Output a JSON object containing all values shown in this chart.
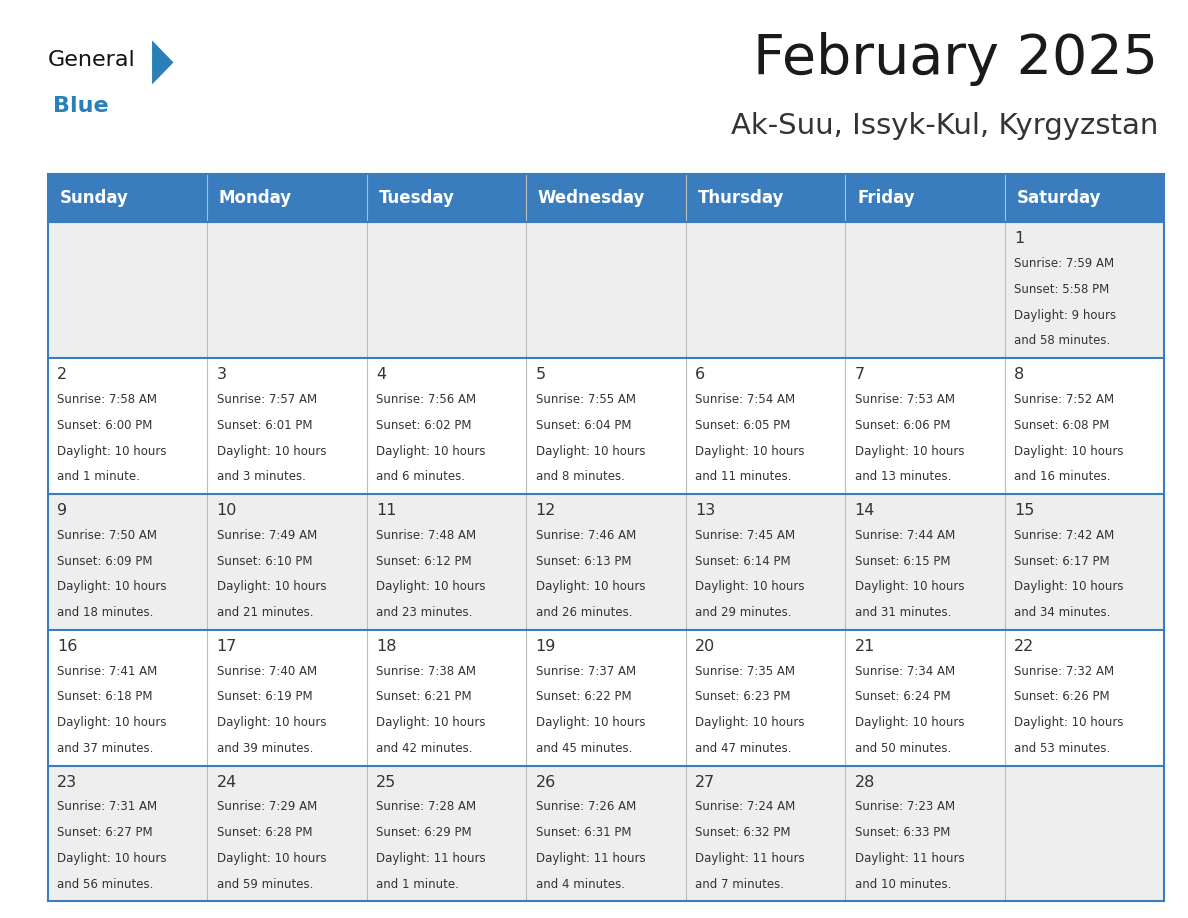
{
  "title": "February 2025",
  "subtitle": "Ak-Suu, Issyk-Kul, Kyrgyzstan",
  "header_bg": "#3a7dbf",
  "header_text": "#ffffff",
  "border_color": "#3a7dbf",
  "row_bg_gray": "#eeeeee",
  "row_bg_white": "#ffffff",
  "day_names": [
    "Sunday",
    "Monday",
    "Tuesday",
    "Wednesday",
    "Thursday",
    "Friday",
    "Saturday"
  ],
  "title_color": "#1a1a1a",
  "subtitle_color": "#333333",
  "text_color": "#333333",
  "day_num_color": "#333333",
  "logo_general_color": "#111111",
  "logo_blue_color": "#2980b9",
  "logo_triangle_color": "#2980b9",
  "days": [
    {
      "day": 1,
      "col": 6,
      "row": 0,
      "sunrise": "7:59 AM",
      "sunset": "5:58 PM",
      "daylight": "9 hours and 58 minutes."
    },
    {
      "day": 2,
      "col": 0,
      "row": 1,
      "sunrise": "7:58 AM",
      "sunset": "6:00 PM",
      "daylight": "10 hours and 1 minute."
    },
    {
      "day": 3,
      "col": 1,
      "row": 1,
      "sunrise": "7:57 AM",
      "sunset": "6:01 PM",
      "daylight": "10 hours and 3 minutes."
    },
    {
      "day": 4,
      "col": 2,
      "row": 1,
      "sunrise": "7:56 AM",
      "sunset": "6:02 PM",
      "daylight": "10 hours and 6 minutes."
    },
    {
      "day": 5,
      "col": 3,
      "row": 1,
      "sunrise": "7:55 AM",
      "sunset": "6:04 PM",
      "daylight": "10 hours and 8 minutes."
    },
    {
      "day": 6,
      "col": 4,
      "row": 1,
      "sunrise": "7:54 AM",
      "sunset": "6:05 PM",
      "daylight": "10 hours and 11 minutes."
    },
    {
      "day": 7,
      "col": 5,
      "row": 1,
      "sunrise": "7:53 AM",
      "sunset": "6:06 PM",
      "daylight": "10 hours and 13 minutes."
    },
    {
      "day": 8,
      "col": 6,
      "row": 1,
      "sunrise": "7:52 AM",
      "sunset": "6:08 PM",
      "daylight": "10 hours and 16 minutes."
    },
    {
      "day": 9,
      "col": 0,
      "row": 2,
      "sunrise": "7:50 AM",
      "sunset": "6:09 PM",
      "daylight": "10 hours and 18 minutes."
    },
    {
      "day": 10,
      "col": 1,
      "row": 2,
      "sunrise": "7:49 AM",
      "sunset": "6:10 PM",
      "daylight": "10 hours and 21 minutes."
    },
    {
      "day": 11,
      "col": 2,
      "row": 2,
      "sunrise": "7:48 AM",
      "sunset": "6:12 PM",
      "daylight": "10 hours and 23 minutes."
    },
    {
      "day": 12,
      "col": 3,
      "row": 2,
      "sunrise": "7:46 AM",
      "sunset": "6:13 PM",
      "daylight": "10 hours and 26 minutes."
    },
    {
      "day": 13,
      "col": 4,
      "row": 2,
      "sunrise": "7:45 AM",
      "sunset": "6:14 PM",
      "daylight": "10 hours and 29 minutes."
    },
    {
      "day": 14,
      "col": 5,
      "row": 2,
      "sunrise": "7:44 AM",
      "sunset": "6:15 PM",
      "daylight": "10 hours and 31 minutes."
    },
    {
      "day": 15,
      "col": 6,
      "row": 2,
      "sunrise": "7:42 AM",
      "sunset": "6:17 PM",
      "daylight": "10 hours and 34 minutes."
    },
    {
      "day": 16,
      "col": 0,
      "row": 3,
      "sunrise": "7:41 AM",
      "sunset": "6:18 PM",
      "daylight": "10 hours and 37 minutes."
    },
    {
      "day": 17,
      "col": 1,
      "row": 3,
      "sunrise": "7:40 AM",
      "sunset": "6:19 PM",
      "daylight": "10 hours and 39 minutes."
    },
    {
      "day": 18,
      "col": 2,
      "row": 3,
      "sunrise": "7:38 AM",
      "sunset": "6:21 PM",
      "daylight": "10 hours and 42 minutes."
    },
    {
      "day": 19,
      "col": 3,
      "row": 3,
      "sunrise": "7:37 AM",
      "sunset": "6:22 PM",
      "daylight": "10 hours and 45 minutes."
    },
    {
      "day": 20,
      "col": 4,
      "row": 3,
      "sunrise": "7:35 AM",
      "sunset": "6:23 PM",
      "daylight": "10 hours and 47 minutes."
    },
    {
      "day": 21,
      "col": 5,
      "row": 3,
      "sunrise": "7:34 AM",
      "sunset": "6:24 PM",
      "daylight": "10 hours and 50 minutes."
    },
    {
      "day": 22,
      "col": 6,
      "row": 3,
      "sunrise": "7:32 AM",
      "sunset": "6:26 PM",
      "daylight": "10 hours and 53 minutes."
    },
    {
      "day": 23,
      "col": 0,
      "row": 4,
      "sunrise": "7:31 AM",
      "sunset": "6:27 PM",
      "daylight": "10 hours and 56 minutes."
    },
    {
      "day": 24,
      "col": 1,
      "row": 4,
      "sunrise": "7:29 AM",
      "sunset": "6:28 PM",
      "daylight": "10 hours and 59 minutes."
    },
    {
      "day": 25,
      "col": 2,
      "row": 4,
      "sunrise": "7:28 AM",
      "sunset": "6:29 PM",
      "daylight": "11 hours and 1 minute."
    },
    {
      "day": 26,
      "col": 3,
      "row": 4,
      "sunrise": "7:26 AM",
      "sunset": "6:31 PM",
      "daylight": "11 hours and 4 minutes."
    },
    {
      "day": 27,
      "col": 4,
      "row": 4,
      "sunrise": "7:24 AM",
      "sunset": "6:32 PM",
      "daylight": "11 hours and 7 minutes."
    },
    {
      "day": 28,
      "col": 5,
      "row": 4,
      "sunrise": "7:23 AM",
      "sunset": "6:33 PM",
      "daylight": "11 hours and 10 minutes."
    }
  ]
}
